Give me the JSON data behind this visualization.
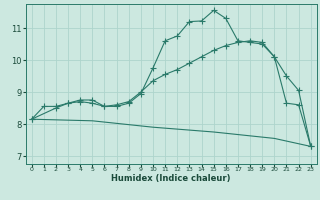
{
  "xlabel": "Humidex (Indice chaleur)",
  "ylabel": "",
  "bg_color": "#cce8e0",
  "grid_color": "#aed4cc",
  "line_color": "#2a7a6a",
  "xlim": [
    -0.5,
    23.5
  ],
  "ylim": [
    6.75,
    11.75
  ],
  "xticks": [
    0,
    1,
    2,
    3,
    4,
    5,
    6,
    7,
    8,
    9,
    10,
    11,
    12,
    13,
    14,
    15,
    16,
    17,
    18,
    19,
    20,
    21,
    22,
    23
  ],
  "yticks": [
    7,
    8,
    9,
    10,
    11
  ],
  "line1_x": [
    0,
    1,
    2,
    3,
    4,
    5,
    6,
    7,
    8,
    9,
    10,
    11,
    12,
    13,
    14,
    15,
    16,
    17,
    18,
    19,
    20,
    21,
    22,
    23
  ],
  "line1_y": [
    8.15,
    8.55,
    8.55,
    8.65,
    8.7,
    8.65,
    8.55,
    8.55,
    8.65,
    8.95,
    9.75,
    10.6,
    10.75,
    11.2,
    11.22,
    11.55,
    11.3,
    10.6,
    10.55,
    10.5,
    10.1,
    8.65,
    8.6,
    7.3
  ],
  "line2_x": [
    0,
    2,
    3,
    4,
    5,
    6,
    7,
    8,
    9,
    10,
    11,
    12,
    13,
    14,
    15,
    16,
    17,
    18,
    19,
    20,
    21,
    22,
    23
  ],
  "line2_y": [
    8.15,
    8.5,
    8.65,
    8.75,
    8.75,
    8.55,
    8.6,
    8.7,
    9.0,
    9.35,
    9.55,
    9.7,
    9.9,
    10.1,
    10.3,
    10.45,
    10.55,
    10.6,
    10.55,
    10.1,
    9.5,
    9.05,
    7.3
  ],
  "line3_x": [
    0,
    5,
    10,
    15,
    20,
    23
  ],
  "line3_y": [
    8.15,
    8.1,
    7.9,
    7.75,
    7.55,
    7.3
  ]
}
